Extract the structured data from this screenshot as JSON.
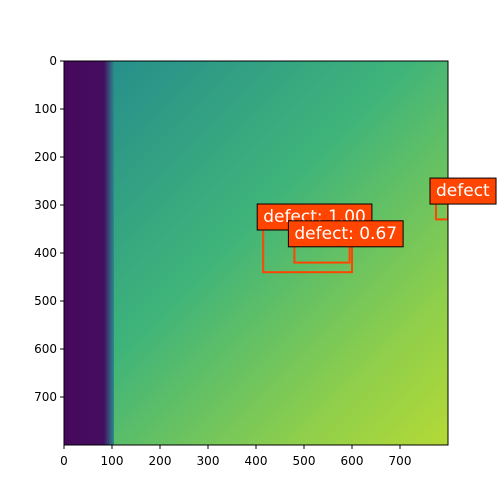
{
  "chart_data": {
    "type": "image",
    "xlim": [
      0,
      800
    ],
    "ylim": [
      0,
      800
    ],
    "y_inverted": true,
    "xticks": [
      0,
      100,
      200,
      300,
      400,
      500,
      600,
      700
    ],
    "yticks": [
      0,
      100,
      200,
      300,
      400,
      500,
      600,
      700
    ],
    "box_color": "#ff4500",
    "boxes": [
      {
        "label": "defect: 1.00",
        "x0": 415,
        "y0": 350,
        "x1": 600,
        "y1": 440
      },
      {
        "label": "defect: 0.67",
        "x0": 480,
        "y0": 385,
        "x1": 595,
        "y1": 420
      },
      {
        "label": "defect",
        "x0": 775,
        "y0": 296,
        "x1": 800,
        "y1": 330
      }
    ]
  }
}
